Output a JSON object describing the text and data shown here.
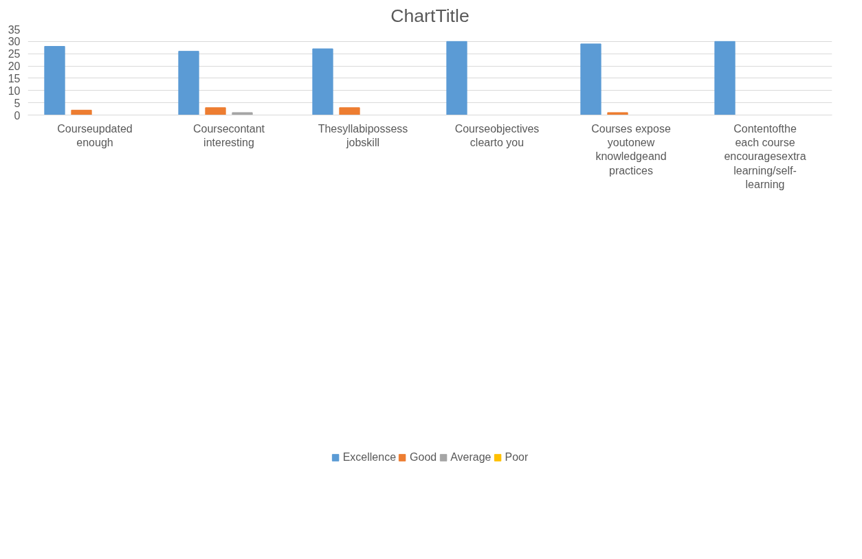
{
  "chart_data": {
    "type": "bar",
    "title": "ChartTitle",
    "categories": [
      "Courseupdated\nenough",
      "Coursecontant\ninteresting",
      "Thesyllabipossess\njobskill",
      "Courseobjectives\nclearto you",
      "Courses expose\nyoutonew\nknowledgeand\npractices",
      "Contentofthe\neach course\nencouragesextra\nlearning/self-\nlearning"
    ],
    "series": [
      {
        "name": "Excellence",
        "color": "#5b9bd5",
        "values": [
          28,
          26,
          27,
          30,
          29,
          30
        ]
      },
      {
        "name": "Good",
        "color": "#ed7d31",
        "values": [
          2,
          3,
          3,
          0,
          1,
          0
        ]
      },
      {
        "name": "Average",
        "color": "#a5a5a5",
        "values": [
          0,
          1,
          0,
          0,
          0,
          0
        ]
      },
      {
        "name": "Poor",
        "color": "#ffc000",
        "values": [
          0,
          0,
          0,
          0,
          0,
          0
        ]
      }
    ],
    "ylim": [
      0,
      35
    ],
    "yticks": [
      0,
      5,
      10,
      15,
      20,
      25,
      30,
      35
    ],
    "grid": "y",
    "legend": "bottom"
  }
}
